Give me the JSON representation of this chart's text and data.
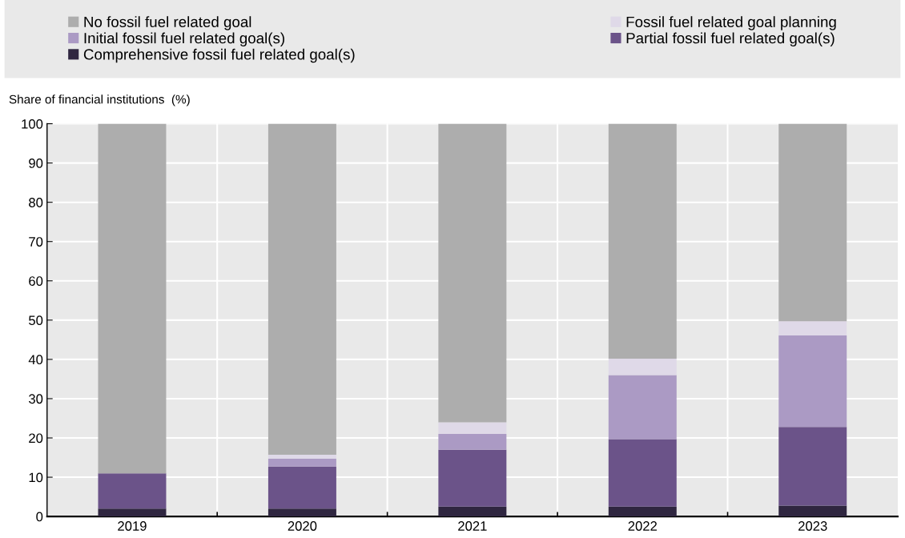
{
  "chart_data": {
    "type": "bar",
    "stacked": true,
    "ylabel": "Share of financial institutions  (%)",
    "categories": [
      "2019",
      "2020",
      "2021",
      "2022",
      "2023"
    ],
    "series": [
      {
        "name": "Comprehensive fossil fuel related goal(s)",
        "color": "#2f2640",
        "values": [
          2,
          2,
          2.5,
          2.5,
          2.8
        ]
      },
      {
        "name": "Partial fossil fuel related goal(s)",
        "color": "#6b5389",
        "values": [
          9,
          10.7,
          14.5,
          17.2,
          20
        ]
      },
      {
        "name": "Initial fossil fuel related goal(s)",
        "color": "#ab9ac4",
        "values": [
          0,
          2,
          4,
          16.3,
          23.3
        ]
      },
      {
        "name": "Fossil fuel related goal planning",
        "color": "#dfd9e8",
        "values": [
          0,
          1,
          3,
          4.2,
          3.6
        ]
      },
      {
        "name": "No fossil fuel related goal",
        "color": "#adadad",
        "values": [
          89,
          84.3,
          76,
          59.8,
          50.3
        ]
      }
    ],
    "ylim": [
      0,
      100
    ],
    "yticks": [
      0,
      10,
      20,
      30,
      40,
      50,
      60,
      70,
      80,
      90,
      100
    ],
    "grid": true,
    "legend": "top"
  }
}
